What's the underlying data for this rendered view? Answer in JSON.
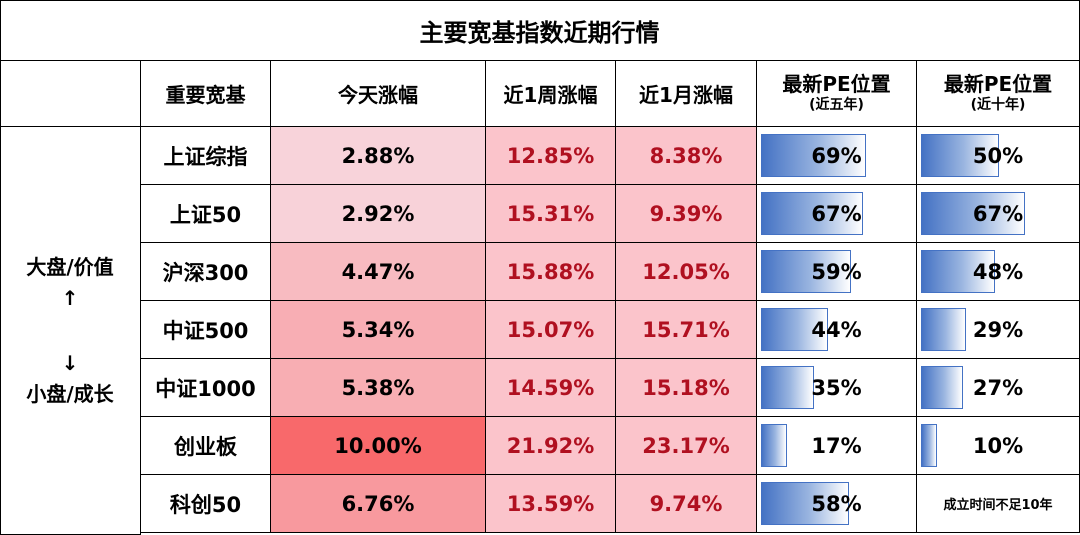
{
  "title": "主要宽基指数近期行情",
  "headers": {
    "name": "重要宽基",
    "today": "今天涨幅",
    "week": "近1周涨幅",
    "month": "近1月涨幅",
    "pe5": "最新PE位置",
    "pe5_sub": "(近五年)",
    "pe10": "最新PE位置",
    "pe10_sub": "(近十年)"
  },
  "side_label": {
    "top": "大盘/价值",
    "arrow_up": "↑",
    "arrow_down": "↓",
    "bottom": "小盘/成长"
  },
  "colors": {
    "today_low": "#f8d3da",
    "today_high": "#f8696b",
    "week_month_bg": "#fbc4cb",
    "red_text": "#b01020",
    "pe_bar": "#4472c4"
  },
  "rows": [
    {
      "name": "上证综指",
      "today": "2.88%",
      "today_val": 2.88,
      "week": "12.85%",
      "month": "8.38%",
      "pe5": "69%",
      "pe5_val": 0.69,
      "pe10": "50%",
      "pe10_val": 0.5
    },
    {
      "name": "上证50",
      "today": "2.92%",
      "today_val": 2.92,
      "week": "15.31%",
      "month": "9.39%",
      "pe5": "67%",
      "pe5_val": 0.67,
      "pe10": "67%",
      "pe10_val": 0.67
    },
    {
      "name": "沪深300",
      "today": "4.47%",
      "today_val": 4.47,
      "week": "15.88%",
      "month": "12.05%",
      "pe5": "59%",
      "pe5_val": 0.59,
      "pe10": "48%",
      "pe10_val": 0.48
    },
    {
      "name": "中证500",
      "today": "5.34%",
      "today_val": 5.34,
      "week": "15.07%",
      "month": "15.71%",
      "pe5": "44%",
      "pe5_val": 0.44,
      "pe10": "29%",
      "pe10_val": 0.29
    },
    {
      "name": "中证1000",
      "today": "5.38%",
      "today_val": 5.38,
      "week": "14.59%",
      "month": "15.18%",
      "pe5": "35%",
      "pe5_val": 0.35,
      "pe10": "27%",
      "pe10_val": 0.27
    },
    {
      "name": "创业板",
      "today": "10.00%",
      "today_val": 10.0,
      "week": "21.92%",
      "month": "23.17%",
      "pe5": "17%",
      "pe5_val": 0.17,
      "pe10": "10%",
      "pe10_val": 0.1
    },
    {
      "name": "科创50",
      "today": "6.76%",
      "today_val": 6.76,
      "week": "13.59%",
      "month": "9.74%",
      "pe5": "58%",
      "pe5_val": 0.58,
      "pe10": "成立时间不足10年",
      "pe10_val": null
    }
  ]
}
